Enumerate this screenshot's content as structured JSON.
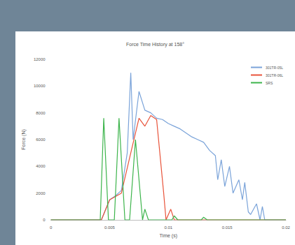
{
  "chart_data": {
    "type": "line",
    "title": "Force Time History at 158°",
    "x_label": "Time (s)",
    "y_label": "Force (N)",
    "xlim": [
      0,
      0.02
    ],
    "xticks": [
      0,
      0.005,
      0.01,
      0.015,
      0.02
    ],
    "ylim": [
      0,
      12000
    ],
    "yticks": [
      0,
      2000,
      4000,
      6000,
      8000,
      10000,
      12000
    ],
    "grid": false,
    "legend": "top-right",
    "series": [
      {
        "name": "301TR-05L",
        "color": "#7aa3d9",
        "x": [
          0,
          0.0043,
          0.005,
          0.0055,
          0.006,
          0.0065,
          0.0068,
          0.007,
          0.0075,
          0.008,
          0.0085,
          0.009,
          0.0095,
          0.01,
          0.0105,
          0.011,
          0.0115,
          0.012,
          0.0125,
          0.013,
          0.0135,
          0.014,
          0.0142,
          0.0145,
          0.0148,
          0.0152,
          0.0155,
          0.016,
          0.0163,
          0.0165,
          0.0168,
          0.017,
          0.0175,
          0.0178,
          0.018,
          0.0182,
          0.02
        ],
        "values": [
          0,
          0,
          1500,
          1800,
          2200,
          5000,
          11000,
          6000,
          9600,
          8200,
          8000,
          7600,
          7500,
          7200,
          7000,
          6800,
          6500,
          6200,
          6000,
          5800,
          5200,
          4800,
          3000,
          4500,
          2500,
          4000,
          2000,
          3000,
          1500,
          2800,
          600,
          400,
          1200,
          0,
          1000,
          0,
          0
        ]
      },
      {
        "name": "301TR-06L",
        "color": "#e8533a",
        "x": [
          0,
          0.0043,
          0.005,
          0.006,
          0.0068,
          0.0075,
          0.008,
          0.0085,
          0.009,
          0.0096,
          0.0098,
          0.0102,
          0.0105,
          0.02
        ],
        "values": [
          0,
          0,
          1500,
          2000,
          5000,
          7600,
          7000,
          7800,
          7500,
          2000,
          0,
          800,
          0,
          0
        ]
      },
      {
        "name": "SRS",
        "color": "#3cb44b",
        "x": [
          0,
          0.0042,
          0.0045,
          0.0049,
          0.0054,
          0.0058,
          0.0063,
          0.0067,
          0.0072,
          0.0078,
          0.008,
          0.0083,
          0.0103,
          0.0105,
          0.0108,
          0.0128,
          0.013,
          0.0133,
          0.02
        ],
        "values": [
          0,
          0,
          7600,
          0,
          0,
          7600,
          0,
          0,
          6000,
          0,
          800,
          0,
          0,
          300,
          0,
          0,
          200,
          0,
          0
        ]
      }
    ]
  }
}
